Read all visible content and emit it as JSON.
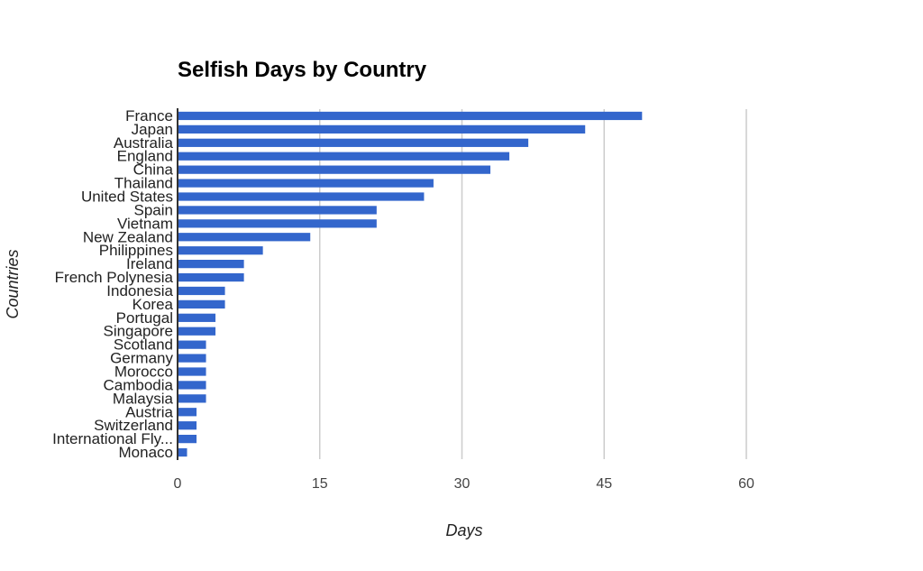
{
  "chart_data": {
    "type": "bar",
    "orientation": "horizontal",
    "title": "Selfish Days by Country",
    "xlabel": "Days",
    "ylabel": "Countries",
    "xlim": [
      0,
      60
    ],
    "xticks": [
      0,
      15,
      30,
      45,
      60
    ],
    "grid": true,
    "legend": "none",
    "bar_color": "#3366cc",
    "categories": [
      "France",
      "Japan",
      "Australia",
      "England",
      "China",
      "Thailand",
      "United States",
      "Spain",
      "Vietnam",
      "New Zealand",
      "Philippines",
      "Ireland",
      "French Polynesia",
      "Indonesia",
      "Korea",
      "Portugal",
      "Singapore",
      "Scotland",
      "Germany",
      "Morocco",
      "Cambodia",
      "Malaysia",
      "Austria",
      "Switzerland",
      "International Fly...",
      "Monaco"
    ],
    "values": [
      49,
      43,
      37,
      35,
      33,
      27,
      26,
      21,
      21,
      14,
      9,
      7,
      7,
      5,
      5,
      4,
      4,
      3,
      3,
      3,
      3,
      3,
      2,
      2,
      2,
      1
    ]
  }
}
